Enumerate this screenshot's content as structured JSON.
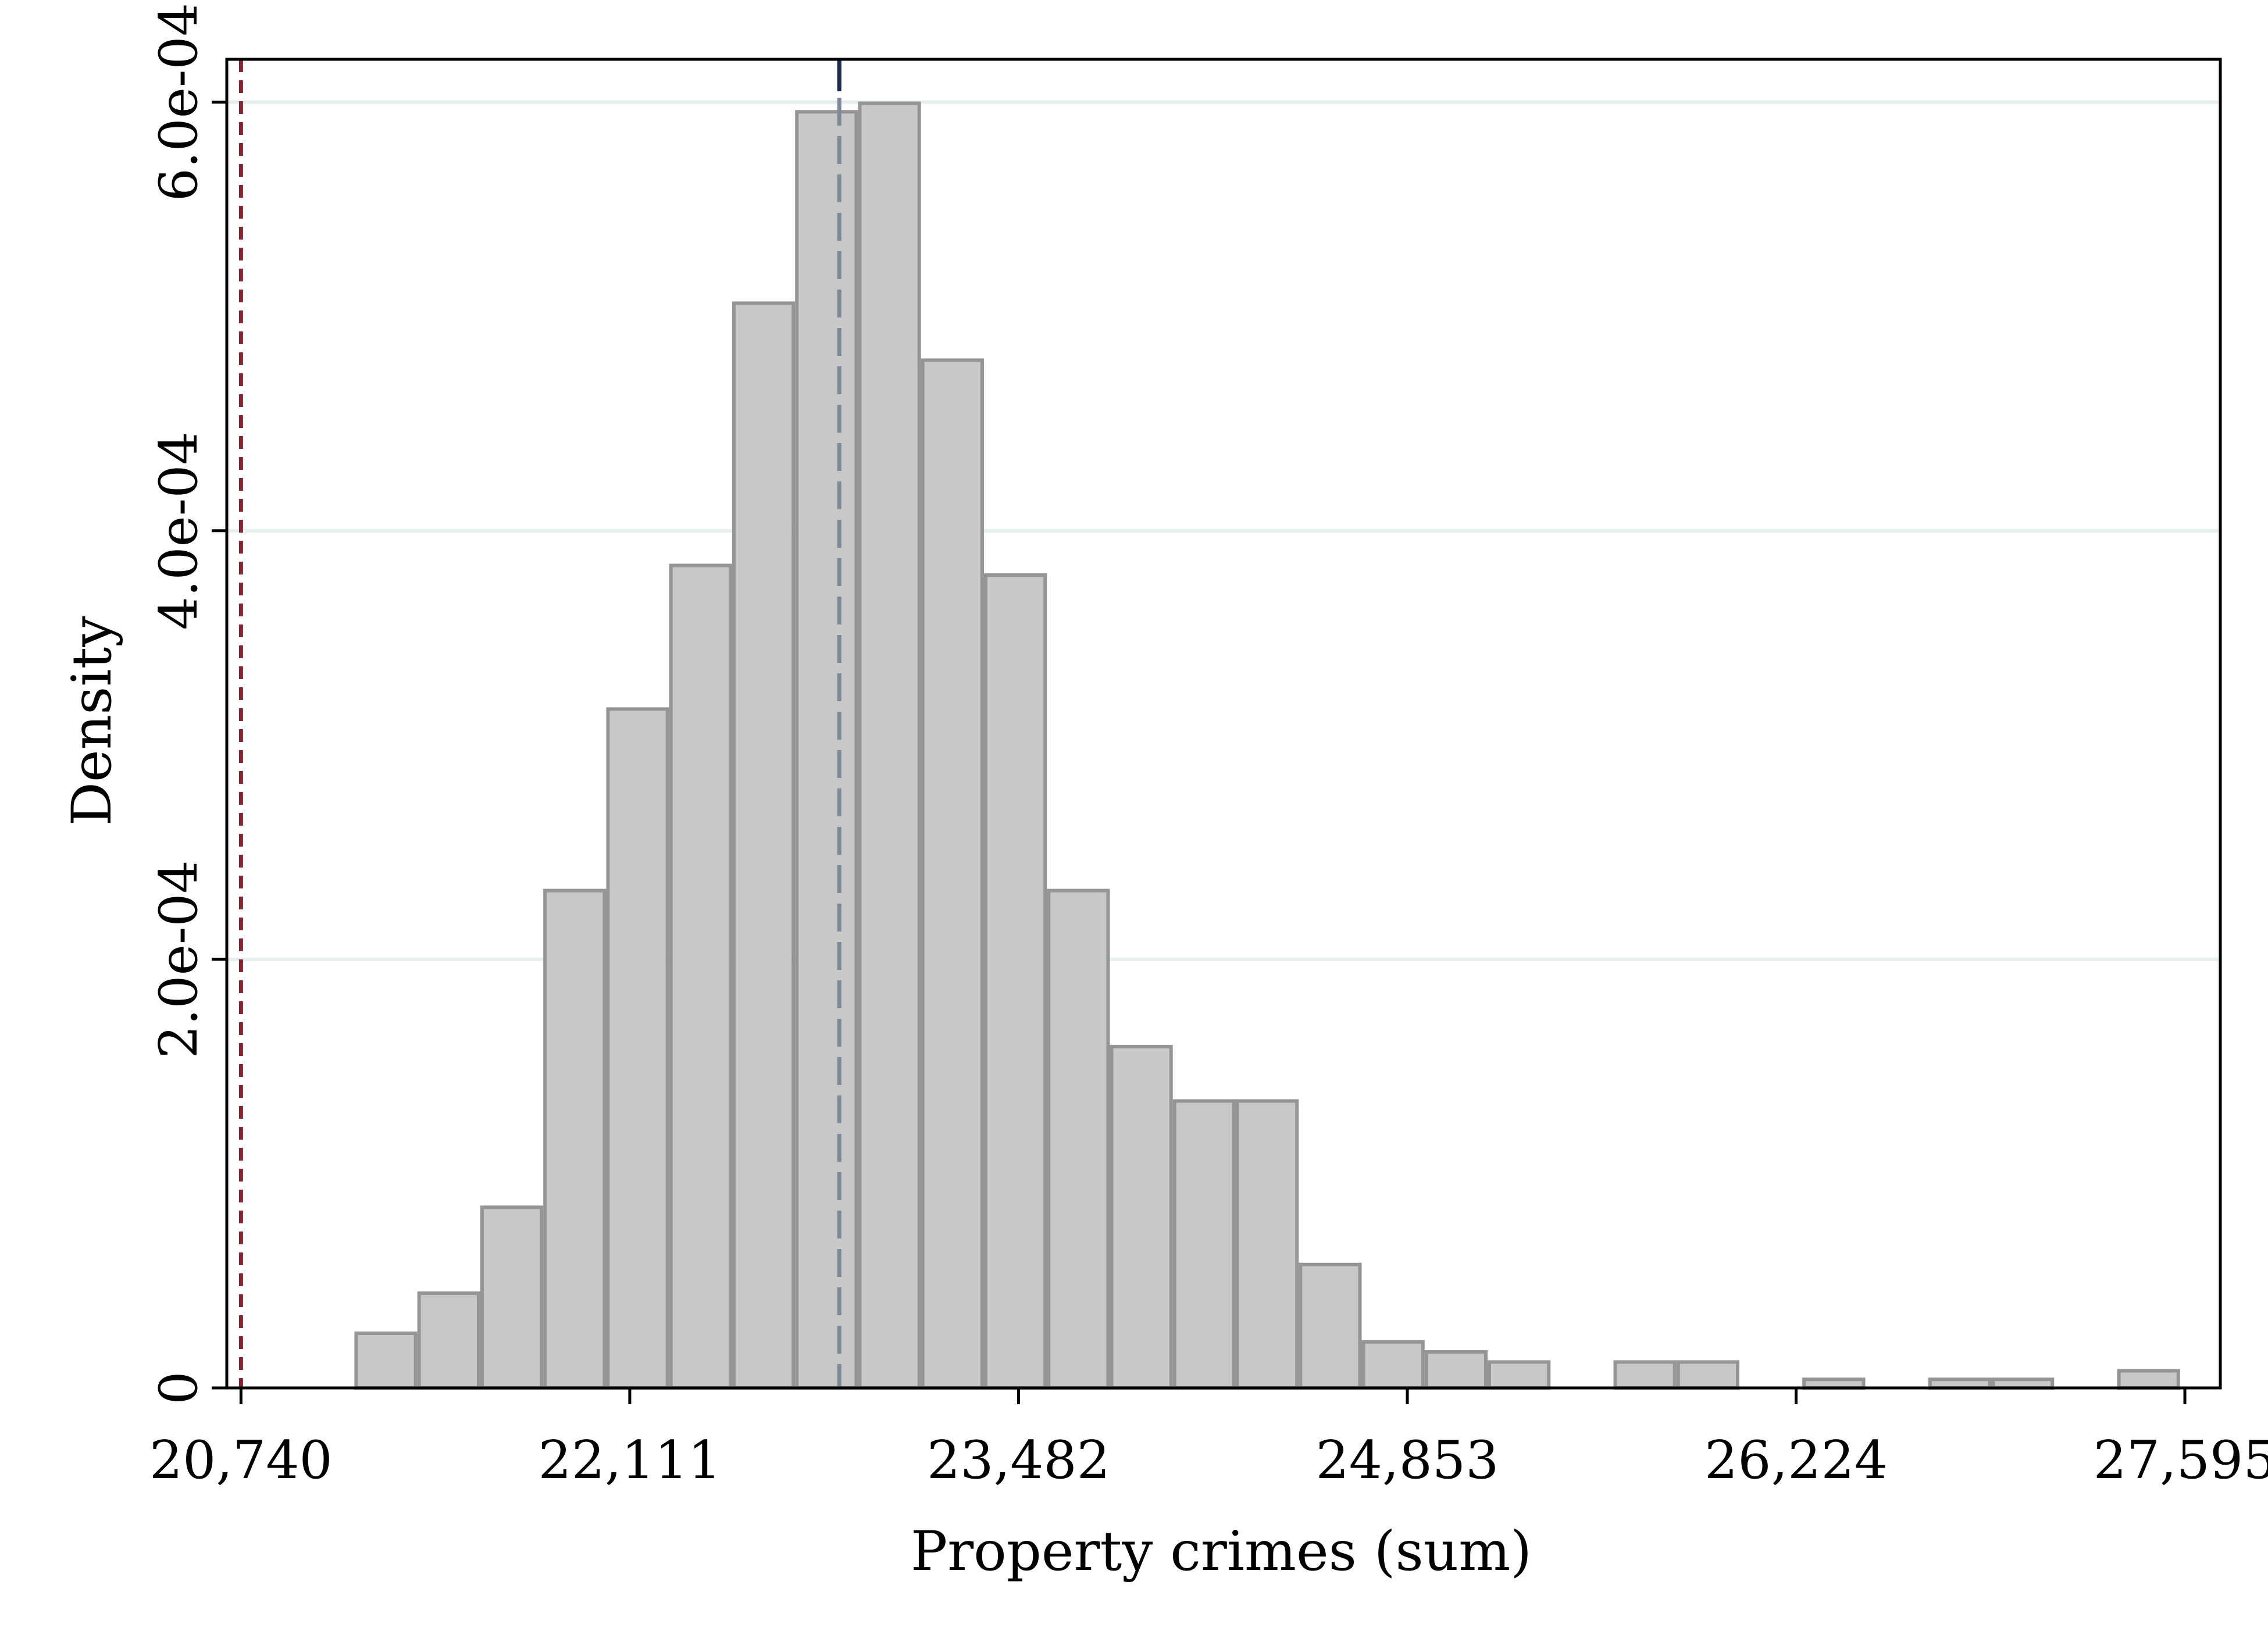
{
  "chart_data": {
    "type": "bar",
    "subtype": "histogram",
    "xlabel": "Property crimes (sum)",
    "ylabel": "Density",
    "xlim": [
      20690,
      27720
    ],
    "ylim": [
      0,
      0.00062
    ],
    "x_ticks": [
      20740,
      22111,
      23482,
      24853,
      26224,
      27595
    ],
    "x_tick_labels": [
      "20,740",
      "22,111",
      "23,482",
      "24,853",
      "26,224",
      "27,595"
    ],
    "y_ticks": [
      0,
      0.0002,
      0.0004,
      0.0006
    ],
    "y_tick_labels": [
      "0",
      "2.0e-04",
      "4.0e-04",
      "6.0e-04"
    ],
    "grid": "horizontal",
    "bin_width": 222,
    "bins": [
      {
        "x0": 21140,
        "x1": 21362,
        "density": 2.55e-05
      },
      {
        "x0": 21362,
        "x1": 21584,
        "density": 4.42e-05
      },
      {
        "x0": 21584,
        "x1": 21806,
        "density": 8.43e-05
      },
      {
        "x0": 21806,
        "x1": 22028,
        "density": 0.0002321
      },
      {
        "x0": 22028,
        "x1": 22250,
        "density": 0.0003168
      },
      {
        "x0": 22250,
        "x1": 22472,
        "density": 0.0003838
      },
      {
        "x0": 22472,
        "x1": 22694,
        "density": 0.0005062
      },
      {
        "x0": 22694,
        "x1": 22916,
        "density": 0.0005955
      },
      {
        "x0": 22916,
        "x1": 23138,
        "density": 0.0005995
      },
      {
        "x0": 23138,
        "x1": 23360,
        "density": 0.0004796
      },
      {
        "x0": 23360,
        "x1": 23582,
        "density": 0.0003793
      },
      {
        "x0": 23582,
        "x1": 23804,
        "density": 0.0002321
      },
      {
        "x0": 23804,
        "x1": 24026,
        "density": 0.0001593
      },
      {
        "x0": 24026,
        "x1": 24248,
        "density": 0.0001339
      },
      {
        "x0": 24248,
        "x1": 24470,
        "density": 0.0001339
      },
      {
        "x0": 24470,
        "x1": 24692,
        "density": 5.76e-05
      },
      {
        "x0": 24692,
        "x1": 24914,
        "density": 2.15e-05
      },
      {
        "x0": 24914,
        "x1": 25136,
        "density": 1.68e-05
      },
      {
        "x0": 25136,
        "x1": 25358,
        "density": 1.21e-05
      },
      {
        "x0": 25358,
        "x1": 25580,
        "density": 0
      },
      {
        "x0": 25580,
        "x1": 25802,
        "density": 1.21e-05
      },
      {
        "x0": 25802,
        "x1": 26024,
        "density": 1.21e-05
      },
      {
        "x0": 26024,
        "x1": 26246,
        "density": 0
      },
      {
        "x0": 26246,
        "x1": 26468,
        "density": 4e-06
      },
      {
        "x0": 26468,
        "x1": 26690,
        "density": 0
      },
      {
        "x0": 26690,
        "x1": 26912,
        "density": 4e-06
      },
      {
        "x0": 26912,
        "x1": 27134,
        "density": 4e-06
      },
      {
        "x0": 27134,
        "x1": 27356,
        "density": 0
      },
      {
        "x0": 27356,
        "x1": 27578,
        "density": 8e-06
      }
    ],
    "reference_lines": [
      {
        "x": 20740,
        "style": "dashed",
        "color": "#8b2332"
      },
      {
        "x": 22850,
        "style": "dashed",
        "color": "#7f8a99"
      }
    ],
    "top_marker_x": 22850,
    "colors": {
      "bar_fill": "#c8c8c8",
      "bar_edge": "#959595",
      "grid": "#e6eeee",
      "frame": "#000000",
      "top_marker": "#1a2a4a"
    }
  }
}
